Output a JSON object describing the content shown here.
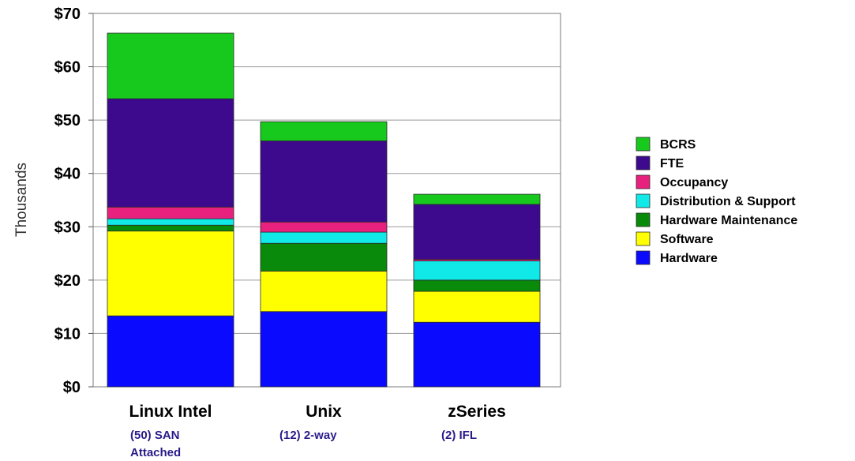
{
  "chart_data": {
    "type": "bar",
    "stacked": true,
    "ylabel": "Thousands",
    "ylim": [
      0,
      70
    ],
    "y_ticks": [
      "$0",
      "$10",
      "$20",
      "$30",
      "$40",
      "$50",
      "$60",
      "$70"
    ],
    "y_tick_values": [
      0,
      10,
      20,
      30,
      40,
      50,
      60,
      70
    ],
    "categories": [
      "Linux Intel",
      "Unix",
      "zSeries"
    ],
    "category_notes": [
      "(50) SAN Attached",
      "(12) 2-way",
      "(2) IFL"
    ],
    "grid": true,
    "legend_position": "right",
    "series": [
      {
        "name": "Hardware",
        "color": "#0a0aff",
        "values": [
          13.3,
          14.1,
          12.1
        ]
      },
      {
        "name": "Software",
        "color": "#ffff00",
        "values": [
          15.9,
          7.6,
          5.8
        ]
      },
      {
        "name": "Hardware Maintenance",
        "color": "#0a8a0a",
        "values": [
          1.1,
          5.2,
          2.1
        ]
      },
      {
        "name": "Distribution & Support",
        "color": "#11e8e8",
        "values": [
          1.2,
          2.1,
          3.6
        ]
      },
      {
        "name": "Occupancy",
        "color": "#e8207e",
        "values": [
          2.2,
          1.9,
          0.3
        ]
      },
      {
        "name": "FTE",
        "color": "#3d0a8e",
        "values": [
          20.3,
          15.2,
          10.3
        ]
      },
      {
        "name": "BCRS",
        "color": "#17c91d",
        "values": [
          12.3,
          3.6,
          1.9
        ]
      }
    ],
    "legend_order": [
      "BCRS",
      "FTE",
      "Occupancy",
      "Distribution & Support",
      "Hardware Maintenance",
      "Software",
      "Hardware"
    ]
  }
}
